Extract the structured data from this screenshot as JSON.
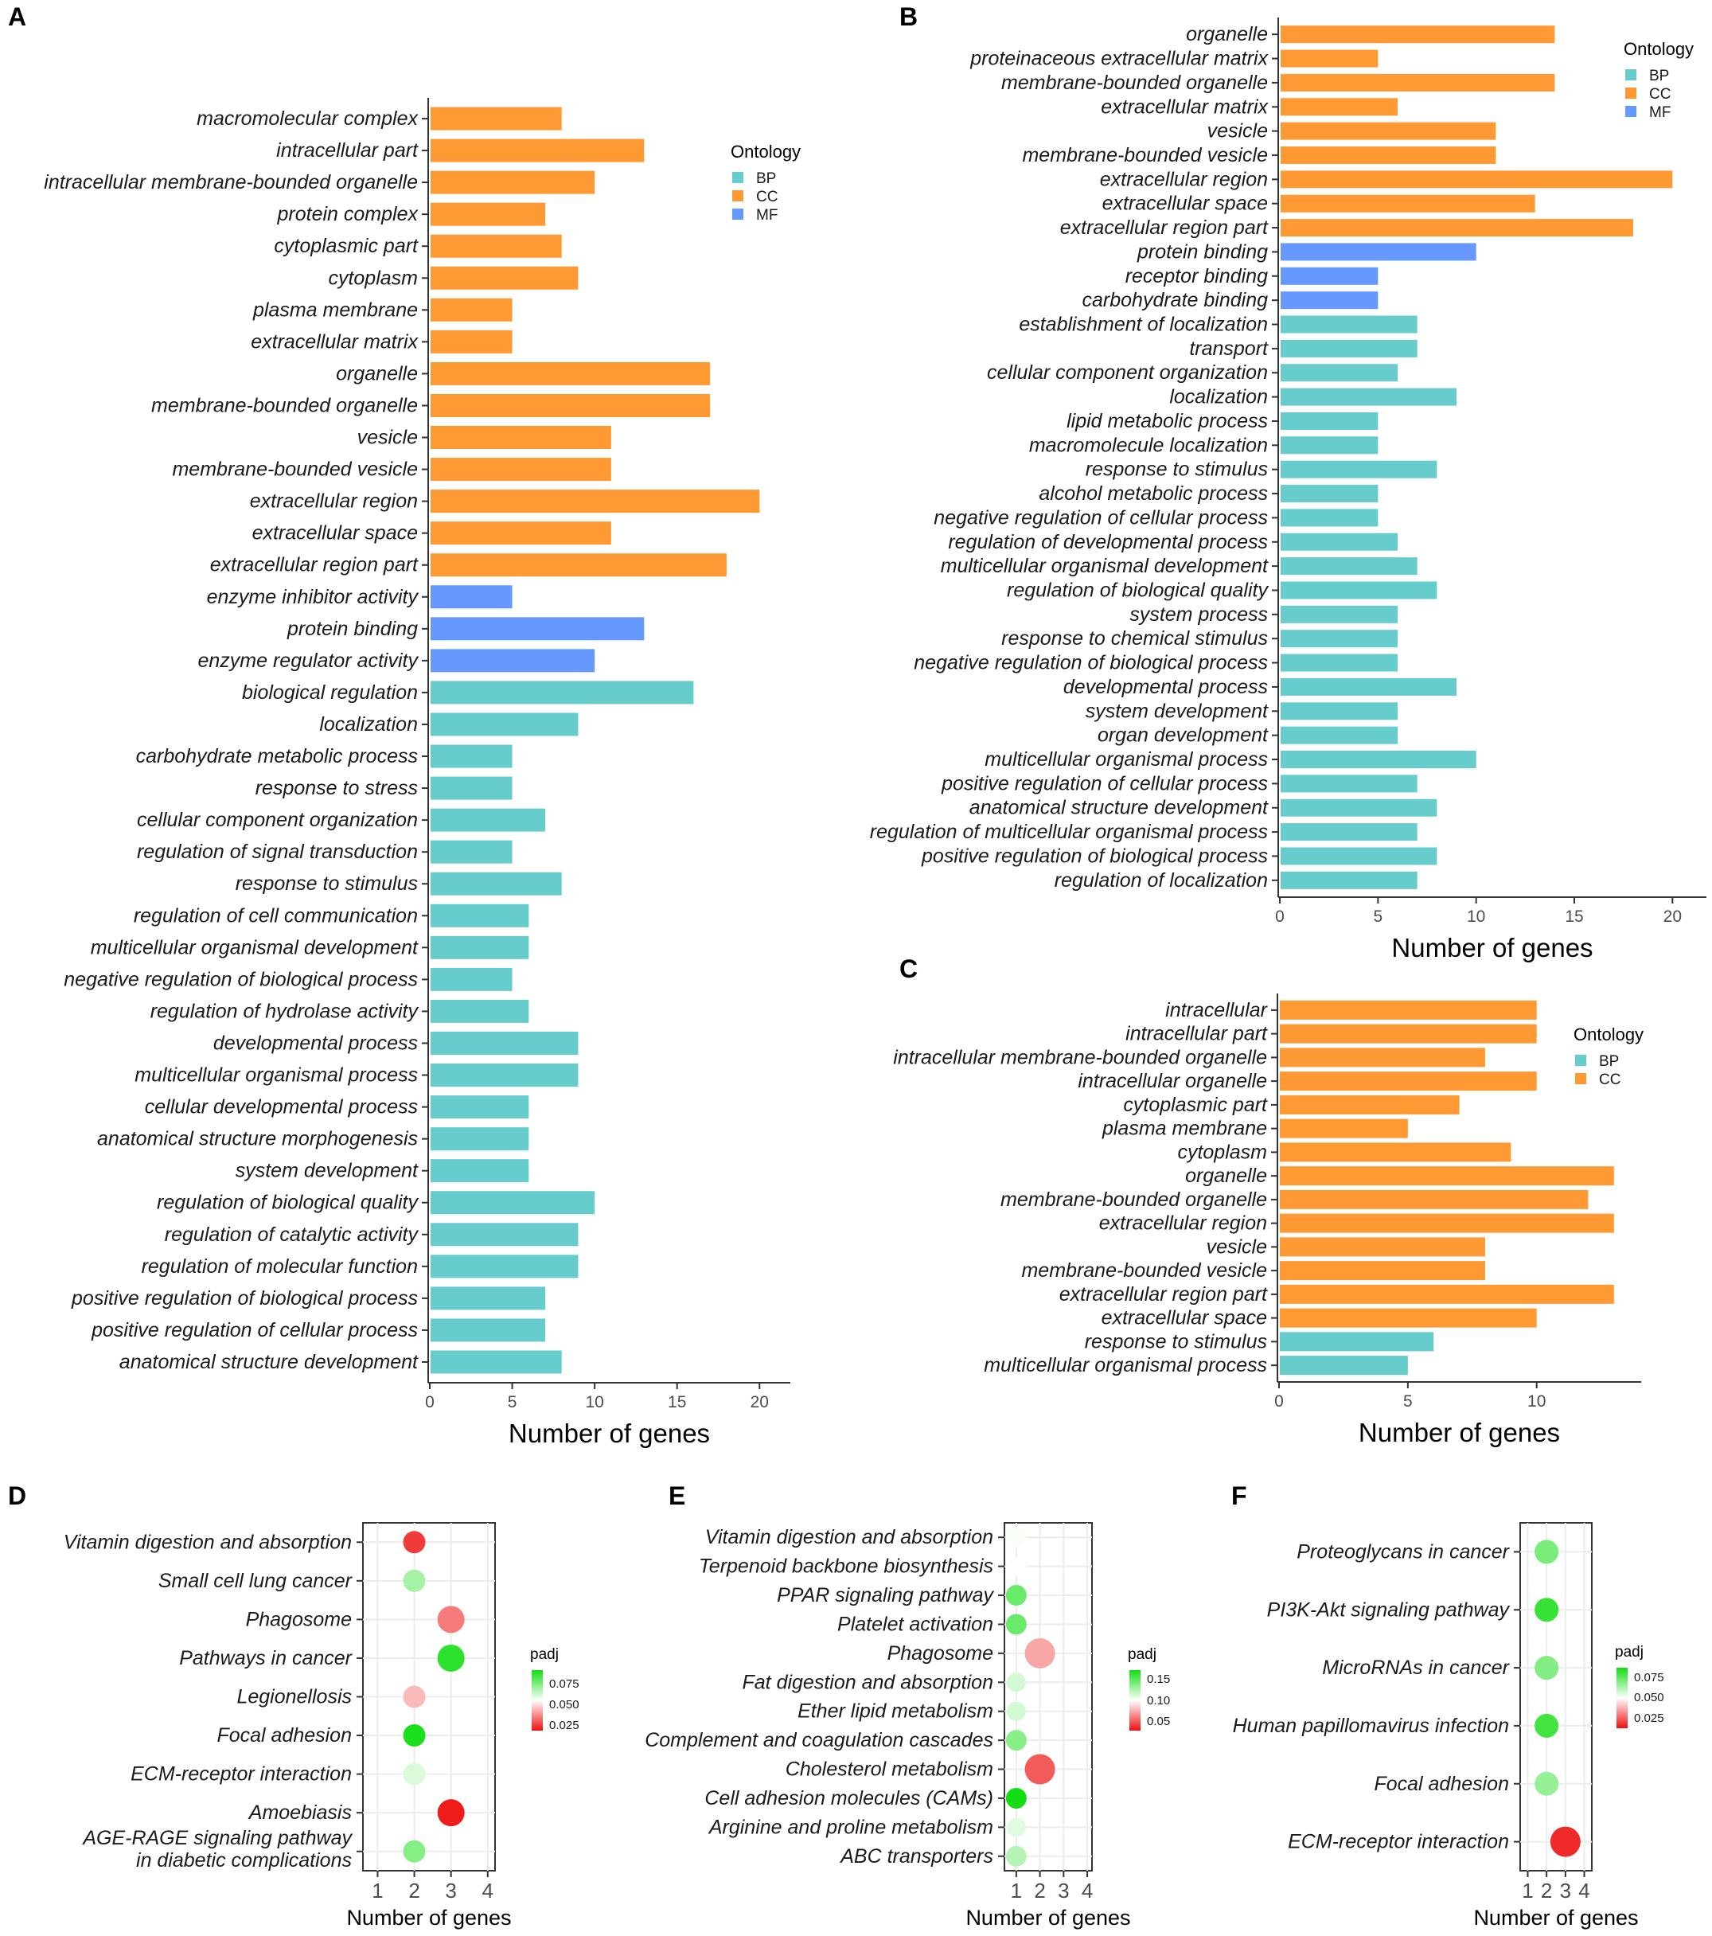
{
  "figure": {
    "colors": {
      "BP": "#66CCCC",
      "CC": "#FF9933",
      "MF": "#6699FF",
      "padj_low": "#EE1111",
      "padj_mid": "#FFFFFF",
      "padj_high": "#11DD11"
    }
  },
  "chart_data": [
    {
      "id": "A",
      "letter": "A",
      "type": "bar",
      "orientation": "horizontal",
      "xlabel": "Number of genes",
      "xlim": [
        0,
        21
      ],
      "xticks": [
        0,
        5,
        10,
        15,
        20
      ],
      "legend": {
        "title": "Ontology",
        "position": "top-right",
        "entries": [
          "BP",
          "CC",
          "MF"
        ]
      },
      "categories": [
        "macromolecular complex",
        "intracellular part",
        "intracellular membrane-bounded organelle",
        "protein complex",
        "cytoplasmic part",
        "cytoplasm",
        "plasma membrane",
        "extracellular matrix",
        "organelle",
        "membrane-bounded organelle",
        "vesicle",
        "membrane-bounded vesicle",
        "extracellular region",
        "extracellular space",
        "extracellular region part",
        "enzyme inhibitor activity",
        "protein binding",
        "enzyme regulator activity",
        "biological regulation",
        "localization",
        "carbohydrate metabolic process",
        "response to stress",
        "cellular component organization",
        "regulation of signal transduction",
        "response to stimulus",
        "regulation of cell communication",
        "multicellular organismal development",
        "negative regulation of biological process",
        "regulation of hydrolase activity",
        "developmental process",
        "multicellular organismal process",
        "cellular developmental process",
        "anatomical structure morphogenesis",
        "system development",
        "regulation of biological quality",
        "regulation of catalytic activity",
        "regulation of molecular function",
        "positive regulation of biological process",
        "positive regulation of cellular process",
        "anatomical structure development"
      ],
      "values": [
        8,
        13,
        10,
        7,
        8,
        9,
        5,
        5,
        17,
        17,
        11,
        11,
        20,
        11,
        18,
        5,
        13,
        10,
        16,
        9,
        5,
        5,
        7,
        5,
        8,
        6,
        6,
        5,
        6,
        9,
        9,
        6,
        6,
        6,
        10,
        9,
        9,
        7,
        7,
        8
      ],
      "ontology": [
        "CC",
        "CC",
        "CC",
        "CC",
        "CC",
        "CC",
        "CC",
        "CC",
        "CC",
        "CC",
        "CC",
        "CC",
        "CC",
        "CC",
        "CC",
        "MF",
        "MF",
        "MF",
        "BP",
        "BP",
        "BP",
        "BP",
        "BP",
        "BP",
        "BP",
        "BP",
        "BP",
        "BP",
        "BP",
        "BP",
        "BP",
        "BP",
        "BP",
        "BP",
        "BP",
        "BP",
        "BP",
        "BP",
        "BP",
        "BP"
      ]
    },
    {
      "id": "B",
      "letter": "B",
      "type": "bar",
      "orientation": "horizontal",
      "xlabel": "Number of genes",
      "xlim": [
        0,
        21
      ],
      "xticks": [
        0,
        5,
        10,
        15,
        20
      ],
      "legend": {
        "title": "Ontology",
        "position": "top-right",
        "entries": [
          "BP",
          "CC",
          "MF"
        ]
      },
      "categories": [
        "organelle",
        "proteinaceous extracellular matrix",
        "membrane-bounded organelle",
        "extracellular matrix",
        "vesicle",
        "membrane-bounded vesicle",
        "extracellular region",
        "extracellular space",
        "extracellular region part",
        "protein binding",
        "receptor binding",
        "carbohydrate binding",
        "establishment of localization",
        "transport",
        "cellular component organization",
        "localization",
        "lipid metabolic process",
        "macromolecule localization",
        "response to stimulus",
        "alcohol metabolic process",
        "negative regulation of cellular process",
        "regulation of developmental process",
        "multicellular organismal development",
        "regulation of biological quality",
        "system process",
        "response to chemical stimulus",
        "negative regulation of biological process",
        "developmental process",
        "system development",
        "organ development",
        "multicellular organismal process",
        "positive regulation of cellular process",
        "anatomical structure development",
        "regulation of multicellular organismal process",
        "positive regulation of biological process",
        "regulation of localization"
      ],
      "values": [
        14,
        5,
        14,
        6,
        11,
        11,
        20,
        13,
        18,
        10,
        5,
        5,
        7,
        7,
        6,
        9,
        5,
        5,
        8,
        5,
        5,
        6,
        7,
        8,
        6,
        6,
        6,
        9,
        6,
        6,
        10,
        7,
        8,
        7,
        8,
        7
      ],
      "ontology": [
        "CC",
        "CC",
        "CC",
        "CC",
        "CC",
        "CC",
        "CC",
        "CC",
        "CC",
        "MF",
        "MF",
        "MF",
        "BP",
        "BP",
        "BP",
        "BP",
        "BP",
        "BP",
        "BP",
        "BP",
        "BP",
        "BP",
        "BP",
        "BP",
        "BP",
        "BP",
        "BP",
        "BP",
        "BP",
        "BP",
        "BP",
        "BP",
        "BP",
        "BP",
        "BP",
        "BP"
      ]
    },
    {
      "id": "C",
      "letter": "C",
      "type": "bar",
      "orientation": "horizontal",
      "xlabel": "Number of genes",
      "xlim": [
        0,
        13.5
      ],
      "xticks": [
        0,
        5,
        10
      ],
      "legend": {
        "title": "Ontology",
        "position": "top-right",
        "entries": [
          "BP",
          "CC"
        ]
      },
      "categories": [
        "intracellular",
        "intracellular part",
        "intracellular membrane-bounded organelle",
        "intracellular organelle",
        "cytoplasmic part",
        "plasma membrane",
        "cytoplasm",
        "organelle",
        "membrane-bounded organelle",
        "extracellular region",
        "vesicle",
        "membrane-bounded vesicle",
        "extracellular region part",
        "extracellular space",
        "response to stimulus",
        "multicellular organismal process"
      ],
      "values": [
        10,
        10,
        8,
        10,
        7,
        5,
        9,
        13,
        12,
        13,
        8,
        8,
        13,
        10,
        6,
        5
      ],
      "ontology": [
        "CC",
        "CC",
        "CC",
        "CC",
        "CC",
        "CC",
        "CC",
        "CC",
        "CC",
        "CC",
        "CC",
        "CC",
        "CC",
        "CC",
        "BP",
        "BP"
      ]
    },
    {
      "id": "D",
      "letter": "D",
      "type": "scatter",
      "xlabel": "Number of genes",
      "xlim": [
        0.6,
        4.2
      ],
      "xticks": [
        1,
        2,
        3,
        4
      ],
      "legend": {
        "title": "padj",
        "position": "right",
        "ticks": [
          "0.075",
          "0.050",
          "0.025"
        ]
      },
      "categories": [
        "Vitamin digestion and absorption",
        "Small cell lung cancer",
        "Phagosome",
        "Pathways in cancer",
        "Legionellosis",
        "Focal adhesion",
        "ECM-receptor interaction",
        "Amoebiasis",
        "AGE-RAGE signaling pathway in diabetic complications"
      ],
      "label_lines": [
        [
          "Vitamin digestion and absorption"
        ],
        [
          "Small cell lung cancer"
        ],
        [
          "Phagosome"
        ],
        [
          "Pathways in cancer"
        ],
        [
          "Legionellosis"
        ],
        [
          "Focal adhesion"
        ],
        [
          "ECM-receptor interaction"
        ],
        [
          "Amoebiasis"
        ],
        [
          "AGE-RAGE signaling pathway",
          "in diabetic complications"
        ]
      ],
      "x": [
        2,
        2,
        3,
        3,
        2,
        2,
        2,
        3,
        2
      ],
      "padj": [
        0.018,
        0.072,
        0.03,
        0.095,
        0.042,
        0.098,
        0.062,
        0.012,
        0.078
      ],
      "padj_range": [
        0.01,
        0.1
      ]
    },
    {
      "id": "E",
      "letter": "E",
      "type": "scatter",
      "xlabel": "Number of genes",
      "xlim": [
        0.5,
        4.2
      ],
      "xticks": [
        1,
        2,
        3,
        4
      ],
      "legend": {
        "title": "padj",
        "position": "right",
        "ticks": [
          "0.15",
          "0.10",
          "0.05"
        ]
      },
      "categories": [
        "Vitamin digestion and absorption",
        "Terpenoid backbone biosynthesis",
        "PPAR signaling pathway",
        "Platelet activation",
        "Phagosome",
        "Fat digestion and absorption",
        "Ether lipid metabolism",
        "Complement and coagulation cascades",
        "Cholesterol metabolism",
        "Cell adhesion molecules (CAMs)",
        "Arginine and proline metabolism",
        "ABC transporters"
      ],
      "label_lines": [
        [
          "Vitamin digestion and absorption"
        ],
        [
          "Terpenoid backbone biosynthesis"
        ],
        [
          "PPAR signaling pathway"
        ],
        [
          "Platelet activation"
        ],
        [
          "Phagosome"
        ],
        [
          "Fat digestion and absorption"
        ],
        [
          "Ether lipid metabolism"
        ],
        [
          "Complement and coagulation cascades"
        ],
        [
          "Cholesterol metabolism"
        ],
        [
          "Cell adhesion molecules (CAMs)"
        ],
        [
          "Arginine and proline metabolism"
        ],
        [
          "ABC transporters"
        ]
      ],
      "x": [
        1,
        1,
        1,
        1,
        2,
        1,
        1,
        1,
        2,
        1,
        1,
        1
      ],
      "padj": [
        0.102,
        0.1,
        0.15,
        0.15,
        0.07,
        0.115,
        0.115,
        0.14,
        0.045,
        0.18,
        0.11,
        0.125
      ],
      "padj_range": [
        0.02,
        0.18
      ]
    },
    {
      "id": "F",
      "letter": "F",
      "type": "scatter",
      "xlabel": "Number of genes",
      "xlim": [
        0.6,
        4.4
      ],
      "xticks": [
        1,
        2,
        3,
        4
      ],
      "legend": {
        "title": "padj",
        "position": "right",
        "ticks": [
          "0.075",
          "0.050",
          "0.025"
        ]
      },
      "categories": [
        "Proteoglycans in cancer",
        "PI3K-Akt signaling pathway",
        "MicroRNAs in cancer",
        "Human papillomavirus infection",
        "Focal adhesion",
        "ECM-receptor interaction"
      ],
      "label_lines": [
        [
          "Proteoglycans in cancer"
        ],
        [
          "PI3K-Akt signaling pathway"
        ],
        [
          "MicroRNAs in cancer"
        ],
        [
          "Human papillomavirus infection"
        ],
        [
          "Focal adhesion"
        ],
        [
          "ECM-receptor interaction"
        ]
      ],
      "x": [
        2,
        2,
        2,
        2,
        2,
        3
      ],
      "padj": [
        0.078,
        0.092,
        0.076,
        0.09,
        0.072,
        0.005
      ],
      "padj_range": [
        0.0,
        0.1
      ]
    }
  ]
}
